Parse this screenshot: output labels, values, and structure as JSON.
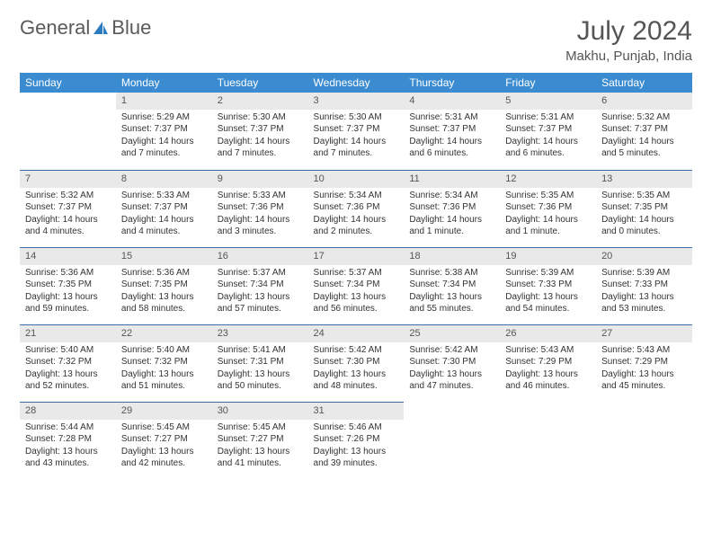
{
  "logo": {
    "text1": "General",
    "text2": "Blue"
  },
  "title": "July 2024",
  "location": "Makhu, Punjab, India",
  "colors": {
    "header_bg": "#3b8bd0",
    "header_text": "#ffffff",
    "daynum_bg": "#e9e9e9",
    "row_divider": "#3b6ea5",
    "text": "#333333",
    "title_text": "#555555",
    "logo_gray": "#5a5a5a",
    "logo_blue": "#2b7bbf"
  },
  "typography": {
    "title_fontsize": 30,
    "location_fontsize": 15,
    "header_fontsize": 12,
    "daynum_fontsize": 11,
    "body_fontsize": 10
  },
  "day_labels": [
    "Sunday",
    "Monday",
    "Tuesday",
    "Wednesday",
    "Thursday",
    "Friday",
    "Saturday"
  ],
  "calendar": {
    "type": "table",
    "first_day_offset": 1,
    "days": [
      {
        "n": 1,
        "sunrise": "5:29 AM",
        "sunset": "7:37 PM",
        "daylight": "14 hours and 7 minutes."
      },
      {
        "n": 2,
        "sunrise": "5:30 AM",
        "sunset": "7:37 PM",
        "daylight": "14 hours and 7 minutes."
      },
      {
        "n": 3,
        "sunrise": "5:30 AM",
        "sunset": "7:37 PM",
        "daylight": "14 hours and 7 minutes."
      },
      {
        "n": 4,
        "sunrise": "5:31 AM",
        "sunset": "7:37 PM",
        "daylight": "14 hours and 6 minutes."
      },
      {
        "n": 5,
        "sunrise": "5:31 AM",
        "sunset": "7:37 PM",
        "daylight": "14 hours and 6 minutes."
      },
      {
        "n": 6,
        "sunrise": "5:32 AM",
        "sunset": "7:37 PM",
        "daylight": "14 hours and 5 minutes."
      },
      {
        "n": 7,
        "sunrise": "5:32 AM",
        "sunset": "7:37 PM",
        "daylight": "14 hours and 4 minutes."
      },
      {
        "n": 8,
        "sunrise": "5:33 AM",
        "sunset": "7:37 PM",
        "daylight": "14 hours and 4 minutes."
      },
      {
        "n": 9,
        "sunrise": "5:33 AM",
        "sunset": "7:36 PM",
        "daylight": "14 hours and 3 minutes."
      },
      {
        "n": 10,
        "sunrise": "5:34 AM",
        "sunset": "7:36 PM",
        "daylight": "14 hours and 2 minutes."
      },
      {
        "n": 11,
        "sunrise": "5:34 AM",
        "sunset": "7:36 PM",
        "daylight": "14 hours and 1 minute."
      },
      {
        "n": 12,
        "sunrise": "5:35 AM",
        "sunset": "7:36 PM",
        "daylight": "14 hours and 1 minute."
      },
      {
        "n": 13,
        "sunrise": "5:35 AM",
        "sunset": "7:35 PM",
        "daylight": "14 hours and 0 minutes."
      },
      {
        "n": 14,
        "sunrise": "5:36 AM",
        "sunset": "7:35 PM",
        "daylight": "13 hours and 59 minutes."
      },
      {
        "n": 15,
        "sunrise": "5:36 AM",
        "sunset": "7:35 PM",
        "daylight": "13 hours and 58 minutes."
      },
      {
        "n": 16,
        "sunrise": "5:37 AM",
        "sunset": "7:34 PM",
        "daylight": "13 hours and 57 minutes."
      },
      {
        "n": 17,
        "sunrise": "5:37 AM",
        "sunset": "7:34 PM",
        "daylight": "13 hours and 56 minutes."
      },
      {
        "n": 18,
        "sunrise": "5:38 AM",
        "sunset": "7:34 PM",
        "daylight": "13 hours and 55 minutes."
      },
      {
        "n": 19,
        "sunrise": "5:39 AM",
        "sunset": "7:33 PM",
        "daylight": "13 hours and 54 minutes."
      },
      {
        "n": 20,
        "sunrise": "5:39 AM",
        "sunset": "7:33 PM",
        "daylight": "13 hours and 53 minutes."
      },
      {
        "n": 21,
        "sunrise": "5:40 AM",
        "sunset": "7:32 PM",
        "daylight": "13 hours and 52 minutes."
      },
      {
        "n": 22,
        "sunrise": "5:40 AM",
        "sunset": "7:32 PM",
        "daylight": "13 hours and 51 minutes."
      },
      {
        "n": 23,
        "sunrise": "5:41 AM",
        "sunset": "7:31 PM",
        "daylight": "13 hours and 50 minutes."
      },
      {
        "n": 24,
        "sunrise": "5:42 AM",
        "sunset": "7:30 PM",
        "daylight": "13 hours and 48 minutes."
      },
      {
        "n": 25,
        "sunrise": "5:42 AM",
        "sunset": "7:30 PM",
        "daylight": "13 hours and 47 minutes."
      },
      {
        "n": 26,
        "sunrise": "5:43 AM",
        "sunset": "7:29 PM",
        "daylight": "13 hours and 46 minutes."
      },
      {
        "n": 27,
        "sunrise": "5:43 AM",
        "sunset": "7:29 PM",
        "daylight": "13 hours and 45 minutes."
      },
      {
        "n": 28,
        "sunrise": "5:44 AM",
        "sunset": "7:28 PM",
        "daylight": "13 hours and 43 minutes."
      },
      {
        "n": 29,
        "sunrise": "5:45 AM",
        "sunset": "7:27 PM",
        "daylight": "13 hours and 42 minutes."
      },
      {
        "n": 30,
        "sunrise": "5:45 AM",
        "sunset": "7:27 PM",
        "daylight": "13 hours and 41 minutes."
      },
      {
        "n": 31,
        "sunrise": "5:46 AM",
        "sunset": "7:26 PM",
        "daylight": "13 hours and 39 minutes."
      }
    ],
    "labels": {
      "sunrise": "Sunrise:",
      "sunset": "Sunset:",
      "daylight": "Daylight:"
    }
  }
}
